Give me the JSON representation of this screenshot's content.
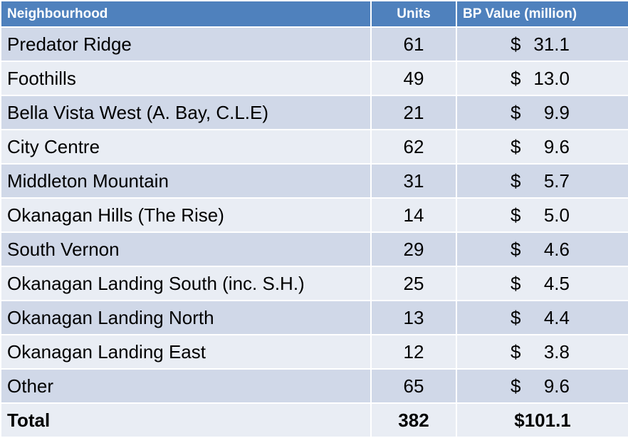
{
  "table": {
    "header": [
      "Neighbourhood",
      "Units",
      "BP Value (million)"
    ],
    "rows": [
      {
        "neighbourhood": "Predator Ridge",
        "units": 61,
        "symbol": "$",
        "amount": "31.1"
      },
      {
        "neighbourhood": "Foothills",
        "units": 49,
        "symbol": "$",
        "amount": "13.0"
      },
      {
        "neighbourhood": "Bella Vista West (A. Bay, C.L.E)",
        "units": 21,
        "symbol": "$",
        "amount": "9.9"
      },
      {
        "neighbourhood": "City Centre",
        "units": 62,
        "symbol": "$",
        "amount": "9.6"
      },
      {
        "neighbourhood": "Middleton Mountain",
        "units": 31,
        "symbol": "$",
        "amount": "5.7"
      },
      {
        "neighbourhood": "Okanagan Hills (The Rise)",
        "units": 14,
        "symbol": "$",
        "amount": "5.0"
      },
      {
        "neighbourhood": "South Vernon",
        "units": 29,
        "symbol": "$",
        "amount": "4.6"
      },
      {
        "neighbourhood": "Okanagan Landing South (inc. S.H.)",
        "units": 25,
        "symbol": "$",
        "amount": "4.5"
      },
      {
        "neighbourhood": "Okanagan Landing North",
        "units": 13,
        "symbol": "$",
        "amount": "4.4"
      },
      {
        "neighbourhood": "Okanagan Landing East",
        "units": 12,
        "symbol": "$",
        "amount": "3.8"
      },
      {
        "neighbourhood": "Other",
        "units": 65,
        "symbol": "$",
        "amount": "9.6"
      }
    ],
    "total": {
      "label": "Total",
      "units": 382,
      "value": "$101.1"
    }
  }
}
